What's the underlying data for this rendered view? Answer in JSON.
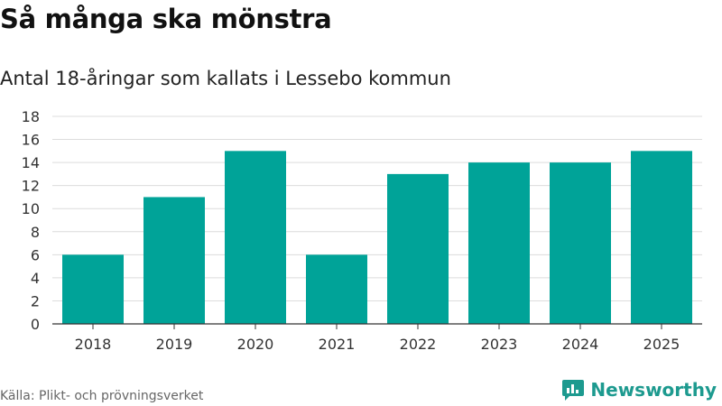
{
  "header": {
    "title": "Så många ska mönstra",
    "subtitle": "Antal 18-åringar som kallats i Lessebo kommun"
  },
  "footer": {
    "source": "Källa: Plikt- och prövningsverket",
    "brand": "Newsworthy"
  },
  "colors": {
    "bar": "#00a398",
    "brand": "#1d9a8f"
  },
  "chart_data": {
    "type": "bar",
    "title": "Så många ska mönstra",
    "subtitle": "Antal 18-åringar som kallats i Lessebo kommun",
    "xlabel": "",
    "ylabel": "",
    "categories": [
      "2018",
      "2019",
      "2020",
      "2021",
      "2022",
      "2023",
      "2024",
      "2025"
    ],
    "values": [
      6,
      11,
      15,
      6,
      13,
      14,
      14,
      15
    ],
    "ylim": [
      0,
      18
    ],
    "yticks": [
      0,
      2,
      4,
      6,
      8,
      10,
      12,
      14,
      16,
      18
    ],
    "grid": true,
    "legend": "none"
  }
}
